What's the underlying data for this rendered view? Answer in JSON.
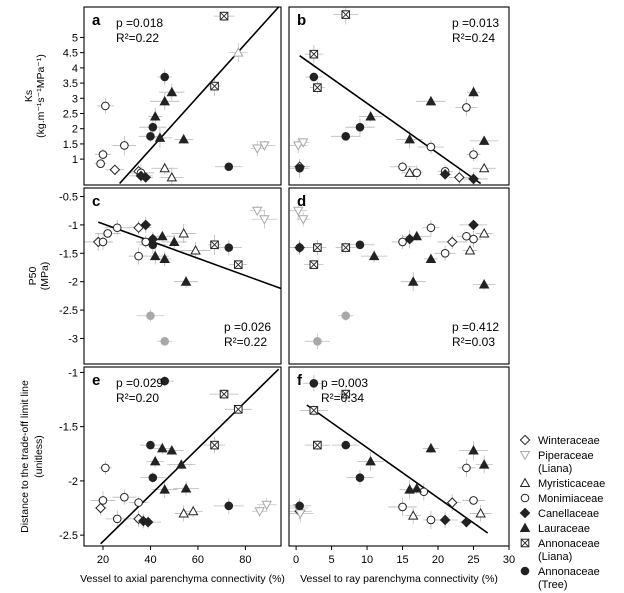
{
  "figure": {
    "shared_xlabels": [
      "Vessel to axial parenchyma connectivity (%)",
      "Vessel to ray parenchyma connectivity (%)"
    ],
    "row_ylabels": [
      [
        "Ks",
        "(kg.m⁻¹s⁻¹MPa⁻¹)"
      ],
      [
        "P50",
        "(MPa)"
      ],
      [
        "Distance to the trade-off limit line",
        "(unitless)"
      ]
    ]
  },
  "legend": {
    "position": "right",
    "items": [
      {
        "label": [
          "Winteraceae"
        ],
        "marker": "diamond-open"
      },
      {
        "label": [
          "Piperaceae",
          "(Liana)"
        ],
        "marker": "triangle-down-open"
      },
      {
        "label": [
          "Myristicaceae"
        ],
        "marker": "triangle-up-open"
      },
      {
        "label": [
          "Monimiaceae"
        ],
        "marker": "circle-open"
      },
      {
        "label": [
          "Canellaceae"
        ],
        "marker": "diamond-filled"
      },
      {
        "label": [
          "Lauraceae"
        ],
        "marker": "triangle-up-filled"
      },
      {
        "label": [
          "Annonaceae",
          "(Liana)"
        ],
        "marker": "square-cross"
      },
      {
        "label": [
          "Annonaceae",
          "(Tree)"
        ],
        "marker": "circle-filled"
      }
    ]
  },
  "chart_data": [
    {
      "type": "scatter",
      "panel": "a",
      "xlim": [
        12,
        95
      ],
      "ylim": [
        0.15,
        6.0
      ],
      "xticks": [
        20,
        40,
        60,
        80
      ],
      "yticks": [
        1,
        1.5,
        2,
        2.5,
        3,
        3.5,
        4,
        4.5,
        5
      ],
      "annotation": [
        "p =0.018",
        "R²=0.22"
      ],
      "annotation_pos": "top-left",
      "trend_line": [
        [
          27,
          0.2
        ],
        [
          94,
          6.0
        ]
      ],
      "points": [
        {
          "x": 25,
          "y": 0.65,
          "m": "diamond-open"
        },
        {
          "x": 35,
          "y": 0.6,
          "m": "diamond-open"
        },
        {
          "x": 85,
          "y": 1.35,
          "m": "triangle-down-open",
          "gray": true
        },
        {
          "x": 88,
          "y": 1.45,
          "m": "triangle-down-open",
          "gray": true
        },
        {
          "x": 77,
          "y": 4.5,
          "m": "triangle-up-open",
          "gray": true
        },
        {
          "x": 46,
          "y": 0.7,
          "m": "triangle-up-open"
        },
        {
          "x": 49,
          "y": 0.4,
          "m": "triangle-up-open"
        },
        {
          "x": 19,
          "y": 0.85,
          "m": "circle-open"
        },
        {
          "x": 20,
          "y": 1.15,
          "m": "circle-open"
        },
        {
          "x": 21,
          "y": 2.75,
          "m": "circle-open"
        },
        {
          "x": 29,
          "y": 1.45,
          "m": "circle-open"
        },
        {
          "x": 36,
          "y": 0.55,
          "m": "circle-open"
        },
        {
          "x": 36,
          "y": 0.45,
          "m": "diamond-filled"
        },
        {
          "x": 38,
          "y": 0.4,
          "m": "diamond-filled"
        },
        {
          "x": 42,
          "y": 2.4,
          "m": "triangle-up-filled"
        },
        {
          "x": 44,
          "y": 1.7,
          "m": "triangle-up-filled"
        },
        {
          "x": 46,
          "y": 2.9,
          "m": "triangle-up-filled"
        },
        {
          "x": 49,
          "y": 3.2,
          "m": "triangle-up-filled"
        },
        {
          "x": 54,
          "y": 1.65,
          "m": "triangle-up-filled"
        },
        {
          "x": 71,
          "y": 5.7,
          "m": "square-cross"
        },
        {
          "x": 67,
          "y": 3.4,
          "m": "square-cross"
        },
        {
          "x": 40,
          "y": 1.75,
          "m": "circle-filled"
        },
        {
          "x": 41,
          "y": 2.05,
          "m": "circle-filled"
        },
        {
          "x": 46,
          "y": 3.7,
          "m": "circle-filled"
        },
        {
          "x": 73,
          "y": 0.75,
          "m": "circle-filled"
        }
      ]
    },
    {
      "type": "scatter",
      "panel": "b",
      "xlim": [
        -1,
        30
      ],
      "ylim": [
        0.15,
        6.0
      ],
      "xticks": [
        0,
        5,
        10,
        15,
        20,
        25,
        30
      ],
      "yticks": [
        1,
        1.5,
        2,
        2.5,
        3,
        3.5,
        4,
        4.5,
        5
      ],
      "annotation": [
        "p =0.013",
        "R²=0.24"
      ],
      "annotation_pos": "top-right",
      "trend_line": [
        [
          0.5,
          4.4
        ],
        [
          26,
          0.2
        ]
      ],
      "points": [
        {
          "x": 0.5,
          "y": 0.75,
          "m": "diamond-open"
        },
        {
          "x": 23,
          "y": 0.4,
          "m": "diamond-open"
        },
        {
          "x": 0.3,
          "y": 1.45,
          "m": "triangle-down-open",
          "gray": true
        },
        {
          "x": 1.0,
          "y": 1.55,
          "m": "triangle-down-open",
          "gray": true
        },
        {
          "x": 26.5,
          "y": 0.7,
          "m": "triangle-up-open"
        },
        {
          "x": 16,
          "y": 0.55,
          "m": "triangle-up-open"
        },
        {
          "x": 15,
          "y": 0.75,
          "m": "circle-open"
        },
        {
          "x": 17,
          "y": 0.55,
          "m": "circle-open"
        },
        {
          "x": 19,
          "y": 1.4,
          "m": "circle-open"
        },
        {
          "x": 24,
          "y": 2.7,
          "m": "circle-open"
        },
        {
          "x": 25,
          "y": 1.15,
          "m": "circle-open"
        },
        {
          "x": 21,
          "y": 0.6,
          "m": "circle-open"
        },
        {
          "x": 21,
          "y": 0.5,
          "m": "diamond-filled"
        },
        {
          "x": 25,
          "y": 0.35,
          "m": "diamond-filled"
        },
        {
          "x": 10.5,
          "y": 2.4,
          "m": "triangle-up-filled"
        },
        {
          "x": 16,
          "y": 1.65,
          "m": "triangle-up-filled"
        },
        {
          "x": 19,
          "y": 2.9,
          "m": "triangle-up-filled"
        },
        {
          "x": 25,
          "y": 3.2,
          "m": "triangle-up-filled"
        },
        {
          "x": 26.5,
          "y": 1.6,
          "m": "triangle-up-filled"
        },
        {
          "x": 7,
          "y": 5.75,
          "m": "square-cross"
        },
        {
          "x": 2.5,
          "y": 4.45,
          "m": "square-cross"
        },
        {
          "x": 3,
          "y": 3.35,
          "m": "square-cross"
        },
        {
          "x": 0.5,
          "y": 0.7,
          "m": "circle-filled"
        },
        {
          "x": 7,
          "y": 1.75,
          "m": "circle-filled"
        },
        {
          "x": 9,
          "y": 2.05,
          "m": "circle-filled"
        },
        {
          "x": 2.5,
          "y": 3.7,
          "m": "circle-filled"
        }
      ]
    },
    {
      "type": "scatter",
      "panel": "c",
      "xlim": [
        12,
        95
      ],
      "ylim": [
        -3.45,
        -0.35
      ],
      "xticks": [
        20,
        40,
        60,
        80
      ],
      "yticks": [
        -0.5,
        -1,
        -1.5,
        -2,
        -2.5,
        -3
      ],
      "annotation": [
        "p =0.026",
        "R²=0.22"
      ],
      "annotation_pos": "bottom-right",
      "trend_line": [
        [
          18,
          -0.95
        ],
        [
          95,
          -2.12
        ]
      ],
      "points": [
        {
          "x": 18,
          "y": -1.3,
          "m": "diamond-open"
        },
        {
          "x": 35,
          "y": -1.05,
          "m": "diamond-open"
        },
        {
          "x": 85,
          "y": -0.75,
          "m": "triangle-down-open",
          "gray": true
        },
        {
          "x": 88,
          "y": -0.9,
          "m": "triangle-down-open",
          "gray": true
        },
        {
          "x": 54,
          "y": -1.15,
          "m": "triangle-up-open"
        },
        {
          "x": 59,
          "y": -1.45,
          "m": "triangle-up-open"
        },
        {
          "x": 20,
          "y": -1.3,
          "m": "circle-open"
        },
        {
          "x": 22,
          "y": -1.15,
          "m": "circle-open"
        },
        {
          "x": 26,
          "y": -1.05,
          "m": "circle-open"
        },
        {
          "x": 35,
          "y": -1.55,
          "m": "circle-open"
        },
        {
          "x": 38,
          "y": -1.3,
          "m": "circle-open"
        },
        {
          "x": 38,
          "y": -1.0,
          "m": "diamond-filled"
        },
        {
          "x": 41,
          "y": -1.25,
          "m": "diamond-filled"
        },
        {
          "x": 42,
          "y": -1.55,
          "m": "triangle-up-filled"
        },
        {
          "x": 45,
          "y": -1.2,
          "m": "triangle-up-filled"
        },
        {
          "x": 46,
          "y": -1.6,
          "m": "triangle-up-filled"
        },
        {
          "x": 50,
          "y": -1.3,
          "m": "triangle-up-filled"
        },
        {
          "x": 55,
          "y": -2.0,
          "m": "triangle-up-filled"
        },
        {
          "x": 67,
          "y": -1.35,
          "m": "square-cross"
        },
        {
          "x": 77,
          "y": -1.7,
          "m": "square-cross"
        },
        {
          "x": 40,
          "y": -2.6,
          "m": "circle-filled",
          "gray": true
        },
        {
          "x": 46,
          "y": -3.05,
          "m": "circle-filled",
          "gray": true
        },
        {
          "x": 41,
          "y": -1.35,
          "m": "circle-filled"
        },
        {
          "x": 73,
          "y": -1.4,
          "m": "circle-filled"
        }
      ]
    },
    {
      "type": "scatter",
      "panel": "d",
      "xlim": [
        -1,
        30
      ],
      "ylim": [
        -3.45,
        -0.35
      ],
      "xticks": [
        0,
        5,
        10,
        15,
        20,
        25,
        30
      ],
      "yticks": [
        -0.5,
        -1,
        -1.5,
        -2,
        -2.5,
        -3
      ],
      "annotation": [
        "p =0.412",
        "R²=0.03"
      ],
      "annotation_pos": "bottom-right",
      "trend_line": null,
      "points": [
        {
          "x": 0.5,
          "y": -1.4,
          "m": "diamond-open"
        },
        {
          "x": 22,
          "y": -1.3,
          "m": "diamond-open"
        },
        {
          "x": 0.3,
          "y": -0.75,
          "m": "triangle-down-open",
          "gray": true
        },
        {
          "x": 1.0,
          "y": -0.9,
          "m": "triangle-down-open",
          "gray": true
        },
        {
          "x": 24.5,
          "y": -1.45,
          "m": "triangle-up-open"
        },
        {
          "x": 26.5,
          "y": -1.15,
          "m": "triangle-up-open"
        },
        {
          "x": 15,
          "y": -1.3,
          "m": "circle-open"
        },
        {
          "x": 19,
          "y": -1.05,
          "m": "circle-open"
        },
        {
          "x": 24,
          "y": -1.2,
          "m": "circle-open"
        },
        {
          "x": 25,
          "y": -1.25,
          "m": "circle-open"
        },
        {
          "x": 21,
          "y": -1.5,
          "m": "circle-open"
        },
        {
          "x": 16,
          "y": -1.25,
          "m": "diamond-filled"
        },
        {
          "x": 25,
          "y": -1.0,
          "m": "diamond-filled"
        },
        {
          "x": 11,
          "y": -1.55,
          "m": "triangle-up-filled"
        },
        {
          "x": 17,
          "y": -1.2,
          "m": "triangle-up-filled"
        },
        {
          "x": 19,
          "y": -1.6,
          "m": "triangle-up-filled"
        },
        {
          "x": 26.5,
          "y": -2.05,
          "m": "triangle-up-filled"
        },
        {
          "x": 16.5,
          "y": -2.0,
          "m": "triangle-up-filled"
        },
        {
          "x": 2.5,
          "y": -1.7,
          "m": "square-cross"
        },
        {
          "x": 3,
          "y": -1.4,
          "m": "square-cross"
        },
        {
          "x": 7,
          "y": -1.4,
          "m": "square-cross"
        },
        {
          "x": 3,
          "y": -3.05,
          "m": "circle-filled",
          "gray": true
        },
        {
          "x": 7,
          "y": -2.6,
          "m": "circle-filled",
          "gray": true
        },
        {
          "x": 0.5,
          "y": -1.4,
          "m": "circle-filled"
        },
        {
          "x": 9,
          "y": -1.35,
          "m": "circle-filled"
        }
      ]
    },
    {
      "type": "scatter",
      "panel": "e",
      "xlim": [
        12,
        95
      ],
      "ylim": [
        -2.6,
        -0.95
      ],
      "xticks": [
        20,
        40,
        60,
        80
      ],
      "yticks": [
        -1.0,
        -1.5,
        -2.0,
        -2.5
      ],
      "annotation": [
        "p =0.029",
        "R²=0.20"
      ],
      "annotation_pos": "top-left",
      "trend_line": [
        [
          19,
          -2.58
        ],
        [
          94,
          -0.97
        ]
      ],
      "points": [
        {
          "x": 19,
          "y": -2.25,
          "m": "diamond-open"
        },
        {
          "x": 35,
          "y": -2.35,
          "m": "diamond-open"
        },
        {
          "x": 86,
          "y": -2.28,
          "m": "triangle-down-open",
          "gray": true
        },
        {
          "x": 89,
          "y": -2.22,
          "m": "triangle-down-open",
          "gray": true
        },
        {
          "x": 54,
          "y": -2.3,
          "m": "triangle-up-open"
        },
        {
          "x": 58,
          "y": -2.28,
          "m": "triangle-up-open"
        },
        {
          "x": 20,
          "y": -2.18,
          "m": "circle-open"
        },
        {
          "x": 21,
          "y": -1.88,
          "m": "circle-open"
        },
        {
          "x": 26,
          "y": -2.35,
          "m": "circle-open"
        },
        {
          "x": 29,
          "y": -2.15,
          "m": "circle-open"
        },
        {
          "x": 35,
          "y": -2.2,
          "m": "circle-open"
        },
        {
          "x": 37,
          "y": -2.37,
          "m": "diamond-filled"
        },
        {
          "x": 39,
          "y": -2.38,
          "m": "diamond-filled"
        },
        {
          "x": 42,
          "y": -1.82,
          "m": "triangle-up-filled"
        },
        {
          "x": 45,
          "y": -1.7,
          "m": "triangle-up-filled"
        },
        {
          "x": 46,
          "y": -2.08,
          "m": "triangle-up-filled"
        },
        {
          "x": 49,
          "y": -1.72,
          "m": "triangle-up-filled"
        },
        {
          "x": 53,
          "y": -1.85,
          "m": "triangle-up-filled"
        },
        {
          "x": 55,
          "y": -2.07,
          "m": "triangle-up-filled"
        },
        {
          "x": 67,
          "y": -1.67,
          "m": "square-cross"
        },
        {
          "x": 71,
          "y": -1.2,
          "m": "square-cross"
        },
        {
          "x": 77,
          "y": -1.34,
          "m": "square-cross"
        },
        {
          "x": 40,
          "y": -1.67,
          "m": "circle-filled"
        },
        {
          "x": 41,
          "y": -1.97,
          "m": "circle-filled"
        },
        {
          "x": 46,
          "y": -1.08,
          "m": "circle-filled"
        },
        {
          "x": 73,
          "y": -2.23,
          "m": "circle-filled"
        }
      ]
    },
    {
      "type": "scatter",
      "panel": "f",
      "xlim": [
        -1,
        30
      ],
      "ylim": [
        -2.6,
        -0.95
      ],
      "xticks": [
        0,
        5,
        10,
        15,
        20,
        25,
        30
      ],
      "yticks": [
        -1.0,
        -1.5,
        -2.0,
        -2.5
      ],
      "annotation": [
        "p =0.003",
        "R²=0.34"
      ],
      "annotation_pos": "top-left",
      "trend_line": [
        [
          1.5,
          -1.3
        ],
        [
          27,
          -2.48
        ]
      ],
      "points": [
        {
          "x": 0.5,
          "y": -2.28,
          "m": "diamond-open"
        },
        {
          "x": 22,
          "y": -2.2,
          "m": "diamond-open"
        },
        {
          "x": 0.3,
          "y": -2.25,
          "m": "triangle-down-open",
          "gray": true
        },
        {
          "x": 0.6,
          "y": -2.3,
          "m": "triangle-down-open",
          "gray": true
        },
        {
          "x": 26,
          "y": -2.3,
          "m": "triangle-up-open"
        },
        {
          "x": 16.5,
          "y": -2.32,
          "m": "triangle-up-open"
        },
        {
          "x": 15,
          "y": -2.24,
          "m": "circle-open"
        },
        {
          "x": 18,
          "y": -2.1,
          "m": "circle-open"
        },
        {
          "x": 19,
          "y": -2.36,
          "m": "circle-open"
        },
        {
          "x": 24,
          "y": -1.88,
          "m": "circle-open"
        },
        {
          "x": 25,
          "y": -2.18,
          "m": "circle-open"
        },
        {
          "x": 21,
          "y": -2.36,
          "m": "diamond-filled"
        },
        {
          "x": 24,
          "y": -2.38,
          "m": "diamond-filled"
        },
        {
          "x": 10.5,
          "y": -1.82,
          "m": "triangle-up-filled"
        },
        {
          "x": 16,
          "y": -2.08,
          "m": "triangle-up-filled"
        },
        {
          "x": 17,
          "y": -2.07,
          "m": "triangle-up-filled"
        },
        {
          "x": 19,
          "y": -1.7,
          "m": "triangle-up-filled"
        },
        {
          "x": 25,
          "y": -1.72,
          "m": "triangle-up-filled"
        },
        {
          "x": 26.5,
          "y": -1.85,
          "m": "triangle-up-filled"
        },
        {
          "x": 7,
          "y": -1.2,
          "m": "square-cross"
        },
        {
          "x": 3,
          "y": -1.67,
          "m": "square-cross"
        },
        {
          "x": 2.5,
          "y": -1.35,
          "m": "square-cross"
        },
        {
          "x": 2.5,
          "y": -1.1,
          "m": "circle-filled"
        },
        {
          "x": 7,
          "y": -1.67,
          "m": "circle-filled"
        },
        {
          "x": 9,
          "y": -1.97,
          "m": "circle-filled"
        },
        {
          "x": 0.5,
          "y": -2.23,
          "m": "circle-filled"
        }
      ]
    }
  ]
}
